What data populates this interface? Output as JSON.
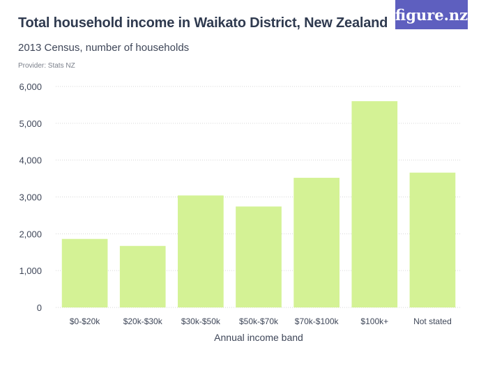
{
  "title": "Total household income in Waikato District, New Zealand",
  "subtitle": "2013 Census, number of households",
  "provider": "Provider: Stats NZ",
  "logo_text": "figure.nz",
  "colors": {
    "bar": "#d4f295",
    "logo_bg": "#5e5fbf",
    "grid": "#d6d6d6",
    "text": "#3e4658"
  },
  "chart_data": {
    "type": "bar",
    "categories": [
      "$0-$20k",
      "$20k-$30k",
      "$30k-$50k",
      "$50k-$70k",
      "$70k-$100k",
      "$100k+",
      "Not stated"
    ],
    "values": [
      1860,
      1670,
      3040,
      2740,
      3520,
      5600,
      3660
    ],
    "xlabel": "Annual income band",
    "ylabel": "",
    "ylim": [
      0,
      6000
    ],
    "yticks": [
      0,
      1000,
      2000,
      3000,
      4000,
      5000,
      6000
    ],
    "ytick_labels": [
      "0",
      "1,000",
      "2,000",
      "3,000",
      "4,000",
      "5,000",
      "6,000"
    ],
    "grid": true,
    "legend": "none"
  }
}
